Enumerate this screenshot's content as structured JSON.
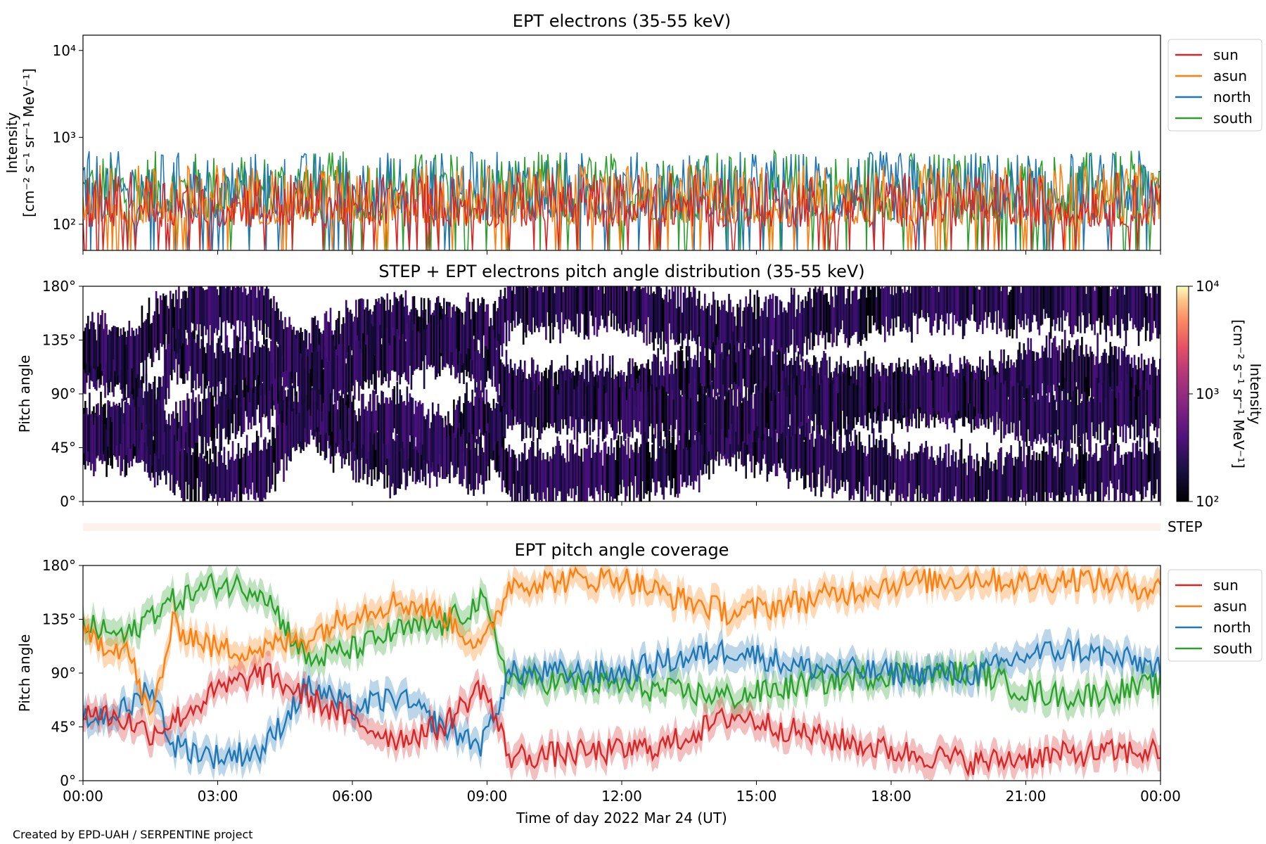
{
  "figure": {
    "credit": "Created by EPD-UAH / SERPENTINE project",
    "xlabel": "Time of day 2022 Mar 24 (UT)"
  },
  "chart_data": [
    {
      "type": "line",
      "title": "EPT electrons (35-55 keV)",
      "ylabel_line1": "Intensity",
      "ylabel_line2": "[cm⁻² s⁻¹ sr⁻¹ MeV⁻¹]",
      "yscale": "log",
      "ylim": [
        50,
        15000
      ],
      "y_ticks": [
        {
          "value": 100,
          "label": "10²"
        },
        {
          "value": 1000,
          "label": "10³"
        },
        {
          "value": 10000,
          "label": "10⁴"
        }
      ],
      "xlim_hours": [
        0,
        24
      ],
      "x_tick_labels": [
        "00:00",
        "03:00",
        "06:00",
        "09:00",
        "12:00",
        "15:00",
        "18:00",
        "21:00",
        "00:00"
      ],
      "legend_location": "upper right outside",
      "series": [
        {
          "name": "south",
          "color": "#2ca02c",
          "typical_range": [
            50,
            700
          ]
        },
        {
          "name": "north",
          "color": "#1f77b4",
          "typical_range": [
            50,
            700
          ]
        },
        {
          "name": "asun",
          "color": "#ff7f0e",
          "typical_range": [
            50,
            500
          ]
        },
        {
          "name": "sun",
          "color": "#d62728",
          "typical_range": [
            50,
            400
          ]
        }
      ]
    },
    {
      "type": "heatmap",
      "title": "STEP + EPT electrons pitch angle distribution (35-55 keV)",
      "ylabel": "Pitch angle",
      "ylim": [
        0,
        180
      ],
      "y_tick_labels": [
        "0°",
        "45°",
        "90°",
        "135°",
        "180°"
      ],
      "colorbar": {
        "scale": "log",
        "range": [
          100,
          10000
        ],
        "tick_labels": [
          "10²",
          "10³",
          "10⁴"
        ],
        "label_line1": "Intensity",
        "label_line2": "[cm⁻² s⁻¹ sr⁻¹ MeV⁻¹]"
      }
    },
    {
      "type": "bar",
      "label": "STEP",
      "color": "#fdf1ec"
    },
    {
      "type": "line",
      "title": "EPT pitch angle coverage",
      "ylabel": "Pitch angle",
      "ylim": [
        0,
        180
      ],
      "y_tick_labels": [
        "0°",
        "45°",
        "90°",
        "135°",
        "180°"
      ],
      "x_tick_labels": [
        "00:00",
        "03:00",
        "06:00",
        "09:00",
        "12:00",
        "15:00",
        "18:00",
        "21:00",
        "00:00"
      ],
      "legend_location": "upper right outside",
      "series": [
        {
          "name": "sun",
          "color": "#d62728",
          "x": [
            0,
            1,
            1.5,
            2,
            3,
            4,
            5,
            6,
            7,
            8,
            8.9,
            9.5,
            12,
            13,
            14.5,
            16,
            18,
            20,
            21,
            22,
            24
          ],
          "y": [
            60,
            50,
            40,
            50,
            75,
            90,
            70,
            50,
            35,
            45,
            80,
            20,
            25,
            30,
            55,
            40,
            25,
            15,
            20,
            22,
            25
          ]
        },
        {
          "name": "asun",
          "color": "#ff7f0e",
          "x": [
            0,
            1,
            1.5,
            2,
            3,
            4,
            5,
            6,
            7,
            8,
            8.9,
            9.5,
            12,
            13,
            14.5,
            16,
            18,
            20,
            21,
            22,
            24
          ],
          "y": [
            120,
            110,
            50,
            130,
            110,
            110,
            120,
            140,
            150,
            140,
            110,
            165,
            170,
            155,
            140,
            150,
            165,
            170,
            165,
            170,
            160
          ]
        },
        {
          "name": "north",
          "color": "#1f77b4",
          "x": [
            0,
            1,
            1.5,
            2,
            3,
            4,
            5,
            6,
            7,
            8,
            8.9,
            9.5,
            12,
            13,
            14.5,
            16,
            18,
            20,
            21,
            22,
            24
          ],
          "y": [
            50,
            60,
            80,
            30,
            20,
            25,
            80,
            60,
            70,
            45,
            30,
            90,
            90,
            100,
            110,
            95,
            90,
            90,
            105,
            110,
            95
          ]
        },
        {
          "name": "south",
          "color": "#2ca02c",
          "x": [
            0,
            1,
            1.5,
            2,
            3,
            4,
            5,
            6,
            7,
            8,
            8.9,
            9.5,
            12,
            13,
            14.5,
            16,
            18,
            20,
            21,
            22,
            24
          ],
          "y": [
            130,
            120,
            140,
            150,
            165,
            160,
            100,
            110,
            125,
            130,
            150,
            85,
            80,
            75,
            70,
            80,
            90,
            90,
            75,
            70,
            80
          ]
        }
      ]
    }
  ]
}
